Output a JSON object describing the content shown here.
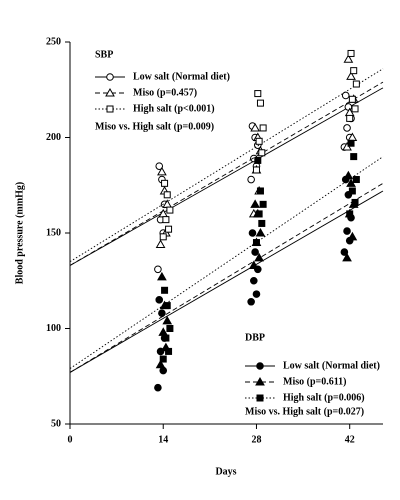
{
  "chart_data": {
    "type": "scatter",
    "x_label": "Days",
    "y_label": "Blood pressure (mmHg)",
    "xlim": [
      0,
      47
    ],
    "xticks": [
      0,
      14,
      28,
      42
    ],
    "ylim": [
      50,
      250
    ],
    "yticks": [
      50,
      100,
      150,
      200,
      250
    ],
    "legend_titles": [
      "SBP",
      "DBP"
    ],
    "annotations": [
      "Miso vs. High salt (p=0.009)",
      "Miso vs. High salt (p=0.027)"
    ],
    "series": [
      {
        "name": "Low salt (Normal diet)",
        "color": "#000000",
        "marker": "circle",
        "filled": false,
        "dash": "solid",
        "x": [
          13.4,
          13.8,
          14.2,
          13.6,
          14.0,
          13.2,
          27.4,
          27.8,
          28.2,
          27.6,
          28.0,
          27.2,
          41.4,
          41.8,
          42.2,
          41.6,
          42.0,
          41.2
        ],
        "values": [
          185,
          178,
          165,
          157,
          150,
          131,
          206,
          200,
          196,
          189,
          185,
          178,
          222,
          216,
          210,
          205,
          200,
          195
        ],
        "fit": {
          "x": [
            0,
            47
          ],
          "values": [
            133,
            226
          ]
        }
      },
      {
        "name": "Miso (p=0.457)",
        "color": "#000000",
        "marker": "triangle",
        "filled": false,
        "dash": "dashed",
        "x": [
          13.8,
          14.2,
          14.6,
          14.0,
          14.4,
          13.6,
          27.8,
          28.2,
          28.6,
          28.0,
          28.4,
          27.6,
          41.8,
          42.2,
          42.6,
          42.0,
          42.4,
          41.6
        ],
        "values": [
          182,
          172,
          165,
          160,
          150,
          144,
          205,
          200,
          193,
          183,
          172,
          160,
          241,
          232,
          220,
          213,
          200,
          195
        ],
        "fit": {
          "x": [
            0,
            47
          ],
          "values": [
            133,
            229
          ]
        }
      },
      {
        "name": "High salt (p<0.001)",
        "color": "#000000",
        "marker": "square",
        "filled": false,
        "dash": "dotted",
        "x": [
          14.2,
          14.6,
          15.0,
          14.4,
          14.8,
          14.0,
          28.2,
          28.6,
          29.0,
          28.4,
          28.8,
          28.0,
          42.2,
          42.6,
          43.0,
          42.4,
          42.8,
          42.0
        ],
        "values": [
          176,
          170,
          162,
          157,
          152,
          148,
          223,
          218,
          205,
          198,
          192,
          183,
          244,
          235,
          228,
          220,
          215,
          210
        ],
        "fit": {
          "x": [
            0,
            47
          ],
          "values": [
            135,
            236
          ]
        }
      },
      {
        "name": "Low salt (Normal diet)",
        "color": "#000000",
        "marker": "circle",
        "filled": true,
        "dash": "solid",
        "x": [
          13.4,
          13.8,
          14.2,
          13.6,
          14.0,
          13.2,
          27.4,
          27.8,
          28.2,
          27.6,
          28.0,
          27.2,
          41.4,
          41.8,
          42.2,
          41.6,
          42.0,
          41.2
        ],
        "values": [
          115,
          108,
          95,
          88,
          78,
          69,
          150,
          140,
          131,
          125,
          118,
          114,
          178,
          170,
          158,
          151,
          146,
          140
        ],
        "fit": {
          "x": [
            0,
            47
          ],
          "values": [
            77,
            172
          ]
        }
      },
      {
        "name": "Miso (p=0.611)",
        "color": "#000000",
        "marker": "triangle",
        "filled": true,
        "dash": "dashed",
        "x": [
          13.8,
          14.2,
          14.6,
          14.0,
          14.4,
          13.6,
          27.8,
          28.2,
          28.6,
          28.0,
          28.4,
          27.6,
          41.8,
          42.2,
          42.6,
          42.0,
          42.4,
          41.6
        ],
        "values": [
          127,
          112,
          104,
          98,
          90,
          81,
          165,
          160,
          150,
          145,
          137,
          133,
          180,
          176,
          165,
          160,
          148,
          137
        ],
        "fit": {
          "x": [
            0,
            47
          ],
          "values": [
            77,
            176
          ]
        }
      },
      {
        "name": "High salt (p=0.006)",
        "color": "#000000",
        "marker": "square",
        "filled": true,
        "dash": "dotted",
        "x": [
          14.2,
          14.6,
          15.0,
          14.4,
          14.8,
          14.0,
          28.2,
          28.6,
          29.0,
          28.4,
          28.8,
          28.0,
          42.2,
          42.6,
          43.0,
          42.4,
          42.8,
          42.0
        ],
        "values": [
          120,
          112,
          100,
          95,
          88,
          84,
          188,
          172,
          165,
          160,
          155,
          145,
          197,
          190,
          178,
          172,
          166,
          160
        ],
        "fit": {
          "x": [
            0,
            47
          ],
          "values": [
            79,
            190
          ]
        }
      }
    ]
  }
}
